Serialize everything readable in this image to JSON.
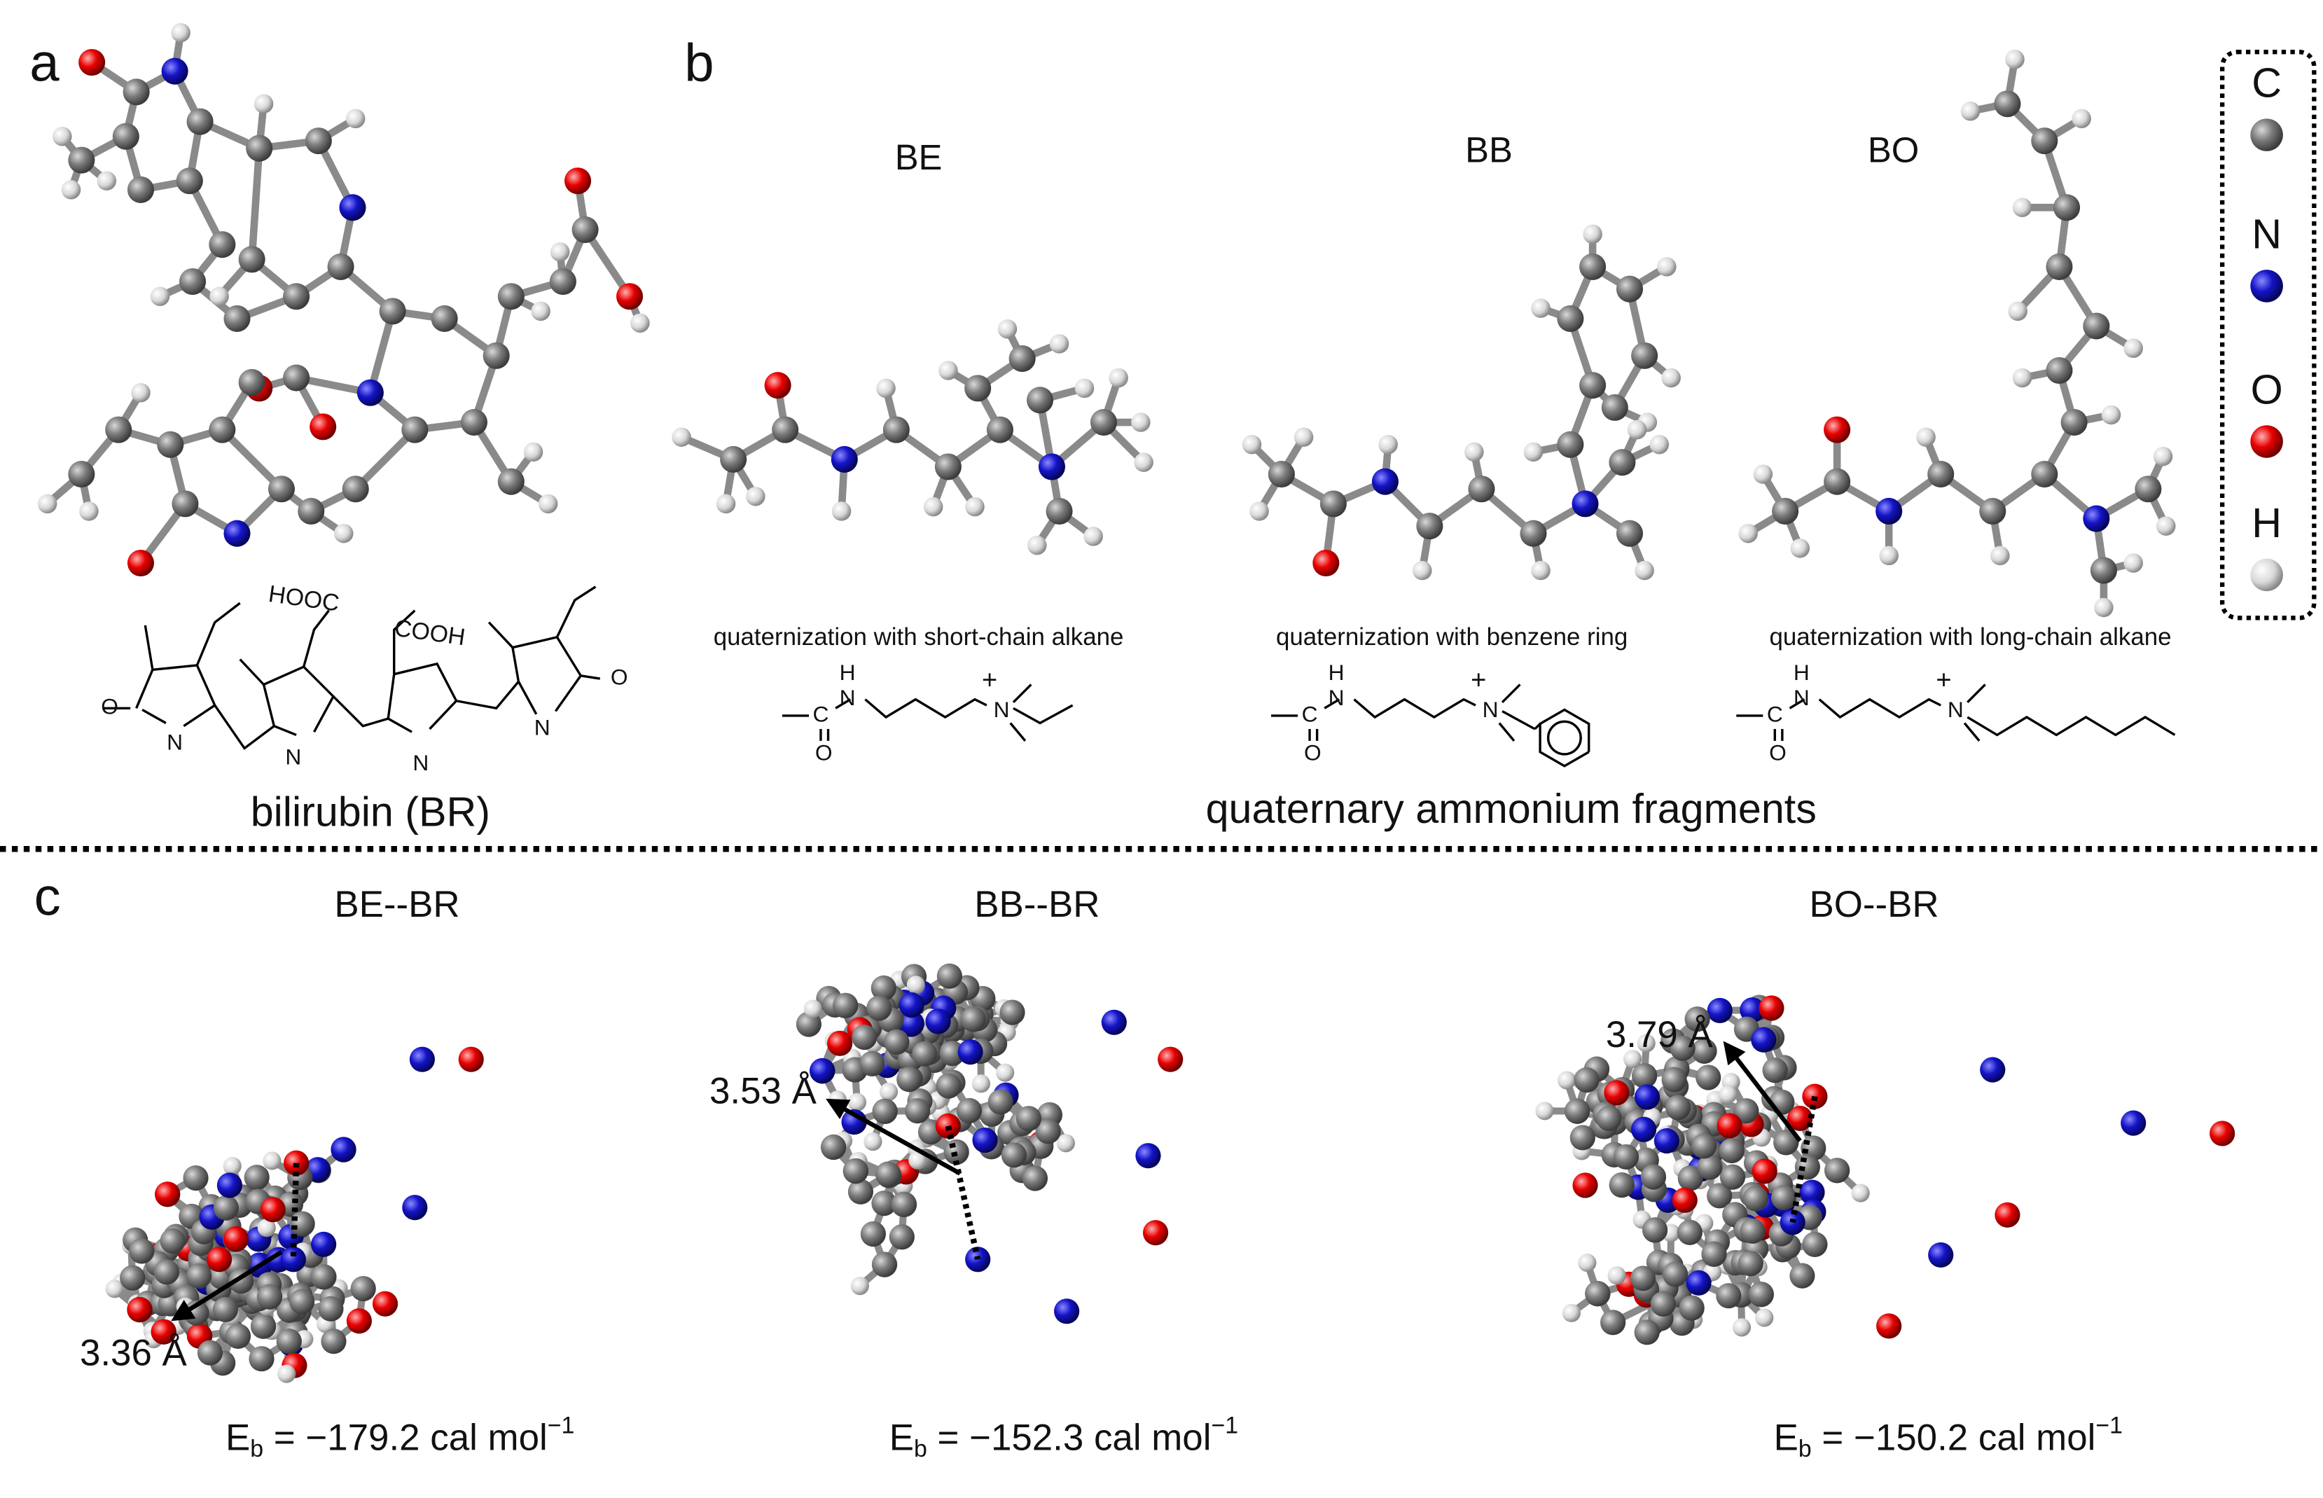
{
  "panel_labels": [
    "a",
    "b",
    "c"
  ],
  "legend": [
    "C",
    "N",
    "O",
    "H"
  ],
  "panel_a": {
    "caption": "bilirubin (BR)",
    "structure_labels": [
      "HOOC",
      "COOH",
      "O",
      "N",
      "N",
      "N",
      "N",
      "O"
    ]
  },
  "panel_b": {
    "molecules": [
      {
        "name": "BE",
        "description": "quaternization with short-chain alkane",
        "formula_labels": [
          "H",
          "N",
          "+",
          "N",
          "C",
          "O"
        ]
      },
      {
        "name": "BB",
        "description": "quaternization with benzene ring",
        "formula_labels": [
          "H",
          "N",
          "+",
          "N",
          "C",
          "O"
        ]
      },
      {
        "name": "BO",
        "description": "quaternization with long-chain alkane",
        "formula_labels": [
          "H",
          "N",
          "+",
          "N",
          "C",
          "O"
        ]
      }
    ],
    "caption": "quaternary ammonium fragments"
  },
  "panel_c": {
    "complexes": [
      {
        "name": "BE--BR",
        "distance": "3.36 Å",
        "energy": {
          "symbol": "E",
          "subscript": "b",
          "text": " = −179.2 cal mol",
          "superscript": "−1"
        }
      },
      {
        "name": "BB--BR",
        "distance": "3.53 Å",
        "energy": {
          "symbol": "E",
          "subscript": "b",
          "text": " = −152.3 cal mol",
          "superscript": "−1"
        }
      },
      {
        "name": "BO--BR",
        "distance": "3.79 Å",
        "energy": {
          "symbol": "E",
          "subscript": "b",
          "text": " = −150.2 cal mol",
          "superscript": "−1"
        }
      }
    ]
  }
}
